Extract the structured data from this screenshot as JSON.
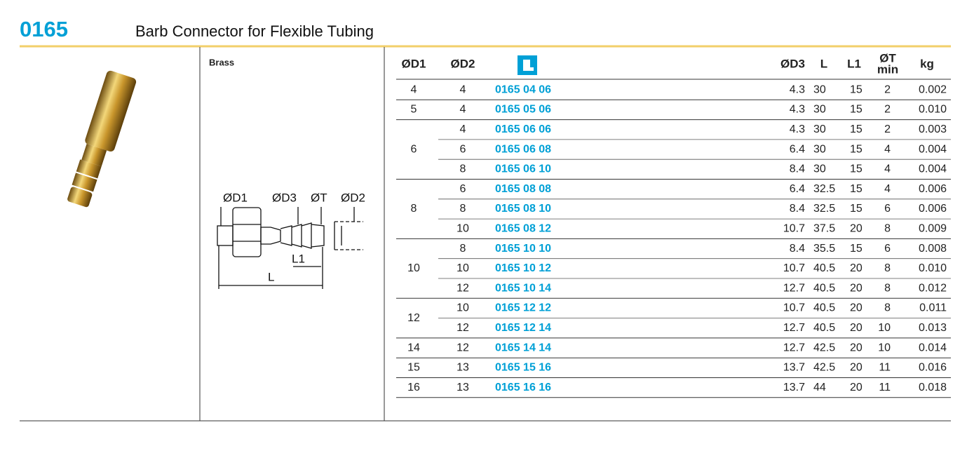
{
  "header": {
    "code": "0165",
    "title": "Barb Connector for Flexible Tubing"
  },
  "material": "Brass",
  "diagram": {
    "labels": [
      "ØD1",
      "ØD3",
      "ØT",
      "ØD2",
      "L1",
      "L"
    ]
  },
  "table": {
    "columns": {
      "d1": "ØD1",
      "d2": "ØD2",
      "d3": "ØD3",
      "l": "L",
      "l1": "L1",
      "t": "ØT",
      "t_sub": "min",
      "kg": "kg"
    },
    "groups": [
      {
        "d1": "4",
        "rows": [
          [
            "4",
            "0165 04 06",
            "4.3",
            "30",
            "15",
            "2",
            "0.002"
          ]
        ]
      },
      {
        "d1": "5",
        "rows": [
          [
            "4",
            "0165 05 06",
            "4.3",
            "30",
            "15",
            "2",
            "0.010"
          ]
        ]
      },
      {
        "d1": "6",
        "rows": [
          [
            "4",
            "0165 06 06",
            "4.3",
            "30",
            "15",
            "2",
            "0.003"
          ],
          [
            "6",
            "0165 06 08",
            "6.4",
            "30",
            "15",
            "4",
            "0.004"
          ],
          [
            "8",
            "0165 06 10",
            "8.4",
            "30",
            "15",
            "4",
            "0.004"
          ]
        ]
      },
      {
        "d1": "8",
        "rows": [
          [
            "6",
            "0165 08 08",
            "6.4",
            "32.5",
            "15",
            "4",
            "0.006"
          ],
          [
            "8",
            "0165 08 10",
            "8.4",
            "32.5",
            "15",
            "6",
            "0.006"
          ],
          [
            "10",
            "0165 08 12",
            "10.7",
            "37.5",
            "20",
            "8",
            "0.009"
          ]
        ]
      },
      {
        "d1": "10",
        "rows": [
          [
            "8",
            "0165 10 10",
            "8.4",
            "35.5",
            "15",
            "6",
            "0.008"
          ],
          [
            "10",
            "0165 10 12",
            "10.7",
            "40.5",
            "20",
            "8",
            "0.010"
          ],
          [
            "12",
            "0165 10 14",
            "12.7",
            "40.5",
            "20",
            "8",
            "0.012"
          ]
        ]
      },
      {
        "d1": "12",
        "rows": [
          [
            "10",
            "0165 12 12",
            "10.7",
            "40.5",
            "20",
            "8",
            "0.011"
          ],
          [
            "12",
            "0165 12 14",
            "12.7",
            "40.5",
            "20",
            "10",
            "0.013"
          ]
        ]
      },
      {
        "d1": "14",
        "rows": [
          [
            "12",
            "0165 14 14",
            "12.7",
            "42.5",
            "20",
            "10",
            "0.014"
          ]
        ]
      },
      {
        "d1": "15",
        "rows": [
          [
            "13",
            "0165 15 16",
            "13.7",
            "42.5",
            "20",
            "11",
            "0.016"
          ]
        ]
      },
      {
        "d1": "16",
        "rows": [
          [
            "13",
            "0165 16 16",
            "13.7",
            "44",
            "20",
            "11",
            "0.018"
          ]
        ]
      }
    ]
  }
}
